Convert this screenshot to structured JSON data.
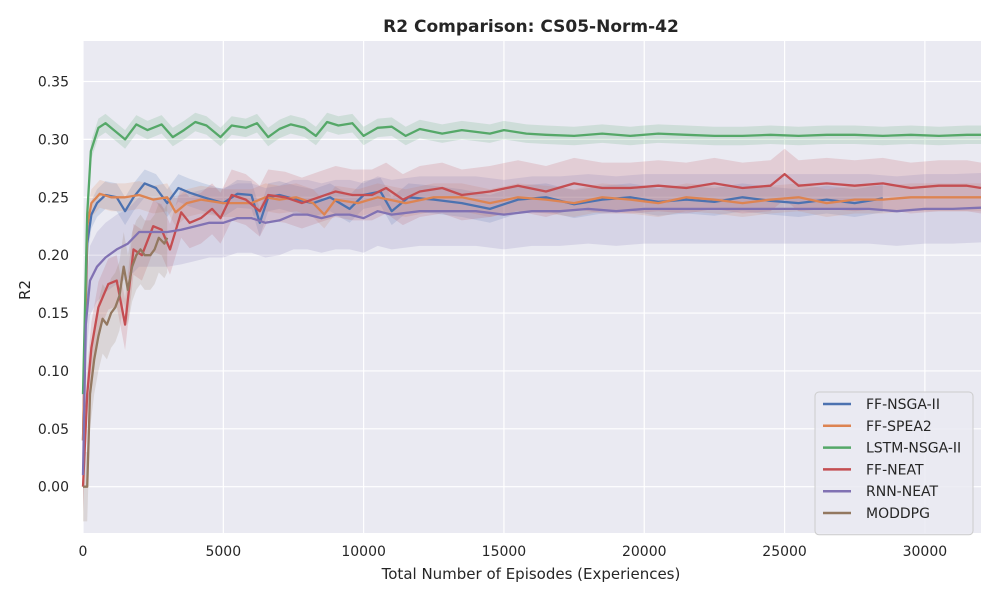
{
  "chart_data": {
    "type": "line",
    "title": "R2 Comparison: CS05-Norm-42",
    "xlabel": "Total Number of Episodes (Experiences)",
    "ylabel": "R2",
    "xlim": [
      0,
      32000
    ],
    "ylim": [
      -0.04,
      0.385
    ],
    "x_ticks": [
      0,
      5000,
      10000,
      15000,
      20000,
      25000,
      30000
    ],
    "y_ticks": [
      0.0,
      0.05,
      0.1,
      0.15,
      0.2,
      0.25,
      0.3,
      0.35
    ],
    "x_tick_labels": [
      "0",
      "5000",
      "10000",
      "15000",
      "20000",
      "25000",
      "30000"
    ],
    "y_tick_labels": [
      "0.00",
      "0.05",
      "0.10",
      "0.15",
      "0.20",
      "0.25",
      "0.30",
      "0.35"
    ],
    "grid": true,
    "background": "#eaeaf2",
    "legend_position": "lower-right",
    "series": [
      {
        "name": "FF-NSGA-II",
        "color": "#4c72b0",
        "band": 0.012,
        "points": [
          [
            0,
            0.04
          ],
          [
            150,
            0.21
          ],
          [
            300,
            0.235
          ],
          [
            500,
            0.245
          ],
          [
            800,
            0.252
          ],
          [
            1200,
            0.25
          ],
          [
            1500,
            0.238
          ],
          [
            1800,
            0.25
          ],
          [
            2200,
            0.262
          ],
          [
            2600,
            0.258
          ],
          [
            3000,
            0.245
          ],
          [
            3400,
            0.258
          ],
          [
            3800,
            0.254
          ],
          [
            4300,
            0.25
          ],
          [
            5000,
            0.245
          ],
          [
            5500,
            0.253
          ],
          [
            6000,
            0.252
          ],
          [
            6300,
            0.228
          ],
          [
            6600,
            0.25
          ],
          [
            7000,
            0.252
          ],
          [
            7600,
            0.248
          ],
          [
            8200,
            0.245
          ],
          [
            8800,
            0.25
          ],
          [
            9500,
            0.24
          ],
          [
            10000,
            0.252
          ],
          [
            10600,
            0.255
          ],
          [
            11000,
            0.238
          ],
          [
            11600,
            0.25
          ],
          [
            12500,
            0.248
          ],
          [
            13500,
            0.245
          ],
          [
            14500,
            0.24
          ],
          [
            15500,
            0.248
          ],
          [
            16500,
            0.25
          ],
          [
            17500,
            0.244
          ],
          [
            18500,
            0.248
          ],
          [
            19500,
            0.25
          ],
          [
            20500,
            0.246
          ],
          [
            21500,
            0.248
          ],
          [
            22500,
            0.246
          ],
          [
            23500,
            0.25
          ],
          [
            24500,
            0.247
          ],
          [
            25500,
            0.245
          ],
          [
            26500,
            0.248
          ],
          [
            27500,
            0.245
          ],
          [
            28500,
            0.249
          ]
        ]
      },
      {
        "name": "FF-SPEA2",
        "color": "#dd8452",
        "band": 0.012,
        "points": [
          [
            0,
            0.04
          ],
          [
            150,
            0.225
          ],
          [
            300,
            0.245
          ],
          [
            600,
            0.253
          ],
          [
            1000,
            0.25
          ],
          [
            1500,
            0.25
          ],
          [
            2000,
            0.252
          ],
          [
            2500,
            0.248
          ],
          [
            3000,
            0.25
          ],
          [
            3300,
            0.237
          ],
          [
            3700,
            0.245
          ],
          [
            4200,
            0.248
          ],
          [
            5000,
            0.245
          ],
          [
            6000,
            0.245
          ],
          [
            6500,
            0.25
          ],
          [
            7000,
            0.248
          ],
          [
            7600,
            0.25
          ],
          [
            8200,
            0.245
          ],
          [
            8600,
            0.235
          ],
          [
            9000,
            0.248
          ],
          [
            9800,
            0.245
          ],
          [
            10500,
            0.25
          ],
          [
            11500,
            0.245
          ],
          [
            12500,
            0.25
          ],
          [
            13500,
            0.25
          ],
          [
            14500,
            0.245
          ],
          [
            15500,
            0.25
          ],
          [
            16500,
            0.248
          ],
          [
            17500,
            0.245
          ],
          [
            18500,
            0.25
          ],
          [
            19500,
            0.248
          ],
          [
            20500,
            0.245
          ],
          [
            21500,
            0.25
          ],
          [
            22500,
            0.248
          ],
          [
            23500,
            0.245
          ],
          [
            24500,
            0.248
          ],
          [
            25500,
            0.25
          ],
          [
            26500,
            0.245
          ],
          [
            27500,
            0.248
          ],
          [
            28500,
            0.248
          ],
          [
            29500,
            0.25
          ],
          [
            30500,
            0.25
          ],
          [
            31500,
            0.25
          ],
          [
            32000,
            0.25
          ]
        ]
      },
      {
        "name": "LSTM-NSGA-II",
        "color": "#55a868",
        "band": 0.008,
        "points": [
          [
            0,
            0.08
          ],
          [
            150,
            0.235
          ],
          [
            280,
            0.29
          ],
          [
            550,
            0.31
          ],
          [
            800,
            0.314
          ],
          [
            1100,
            0.308
          ],
          [
            1500,
            0.3
          ],
          [
            1900,
            0.313
          ],
          [
            2300,
            0.308
          ],
          [
            2800,
            0.313
          ],
          [
            3200,
            0.302
          ],
          [
            3600,
            0.308
          ],
          [
            4000,
            0.315
          ],
          [
            4400,
            0.312
          ],
          [
            4900,
            0.302
          ],
          [
            5300,
            0.312
          ],
          [
            5800,
            0.31
          ],
          [
            6200,
            0.314
          ],
          [
            6600,
            0.302
          ],
          [
            7000,
            0.309
          ],
          [
            7400,
            0.313
          ],
          [
            7900,
            0.31
          ],
          [
            8300,
            0.303
          ],
          [
            8700,
            0.315
          ],
          [
            9100,
            0.312
          ],
          [
            9600,
            0.314
          ],
          [
            10000,
            0.303
          ],
          [
            10500,
            0.31
          ],
          [
            11000,
            0.311
          ],
          [
            11500,
            0.303
          ],
          [
            12000,
            0.309
          ],
          [
            12800,
            0.305
          ],
          [
            13500,
            0.308
          ],
          [
            14500,
            0.305
          ],
          [
            15000,
            0.308
          ],
          [
            15800,
            0.305
          ],
          [
            16500,
            0.304
          ],
          [
            17500,
            0.303
          ],
          [
            18500,
            0.305
          ],
          [
            19500,
            0.303
          ],
          [
            20500,
            0.305
          ],
          [
            21500,
            0.304
          ],
          [
            22500,
            0.303
          ],
          [
            23500,
            0.303
          ],
          [
            24500,
            0.304
          ],
          [
            25500,
            0.303
          ],
          [
            26500,
            0.304
          ],
          [
            27500,
            0.304
          ],
          [
            28500,
            0.303
          ],
          [
            29500,
            0.304
          ],
          [
            30500,
            0.303
          ],
          [
            31500,
            0.304
          ],
          [
            32000,
            0.304
          ]
        ]
      },
      {
        "name": "FF-NEAT",
        "color": "#c44e52",
        "band": 0.022,
        "points": [
          [
            0,
            0.0
          ],
          [
            150,
            0.08
          ],
          [
            300,
            0.12
          ],
          [
            550,
            0.155
          ],
          [
            900,
            0.175
          ],
          [
            1200,
            0.178
          ],
          [
            1500,
            0.14
          ],
          [
            1800,
            0.205
          ],
          [
            2100,
            0.2
          ],
          [
            2500,
            0.225
          ],
          [
            2800,
            0.222
          ],
          [
            3100,
            0.205
          ],
          [
            3500,
            0.237
          ],
          [
            3800,
            0.228
          ],
          [
            4200,
            0.232
          ],
          [
            4600,
            0.24
          ],
          [
            4900,
            0.232
          ],
          [
            5300,
            0.252
          ],
          [
            5800,
            0.248
          ],
          [
            6300,
            0.238
          ],
          [
            6600,
            0.252
          ],
          [
            7200,
            0.25
          ],
          [
            7800,
            0.245
          ],
          [
            8400,
            0.25
          ],
          [
            9000,
            0.255
          ],
          [
            9600,
            0.252
          ],
          [
            10300,
            0.252
          ],
          [
            10800,
            0.258
          ],
          [
            11400,
            0.248
          ],
          [
            12000,
            0.255
          ],
          [
            12800,
            0.258
          ],
          [
            13500,
            0.252
          ],
          [
            14500,
            0.255
          ],
          [
            15500,
            0.26
          ],
          [
            16500,
            0.255
          ],
          [
            17500,
            0.262
          ],
          [
            18500,
            0.258
          ],
          [
            19500,
            0.258
          ],
          [
            20500,
            0.26
          ],
          [
            21500,
            0.258
          ],
          [
            22500,
            0.262
          ],
          [
            23500,
            0.258
          ],
          [
            24500,
            0.26
          ],
          [
            25000,
            0.27
          ],
          [
            25500,
            0.26
          ],
          [
            26500,
            0.262
          ],
          [
            27500,
            0.26
          ],
          [
            28500,
            0.262
          ],
          [
            29500,
            0.258
          ],
          [
            30500,
            0.26
          ],
          [
            31500,
            0.26
          ],
          [
            32000,
            0.258
          ]
        ]
      },
      {
        "name": "RNN-NEAT",
        "color": "#8172b3",
        "band": 0.03,
        "points": [
          [
            0,
            0.01
          ],
          [
            100,
            0.14
          ],
          [
            250,
            0.178
          ],
          [
            500,
            0.19
          ],
          [
            800,
            0.198
          ],
          [
            1200,
            0.205
          ],
          [
            1600,
            0.21
          ],
          [
            2000,
            0.22
          ],
          [
            2500,
            0.22
          ],
          [
            3000,
            0.22
          ],
          [
            3500,
            0.222
          ],
          [
            4000,
            0.225
          ],
          [
            4500,
            0.228
          ],
          [
            5000,
            0.228
          ],
          [
            5500,
            0.232
          ],
          [
            6000,
            0.232
          ],
          [
            6500,
            0.228
          ],
          [
            7000,
            0.23
          ],
          [
            7500,
            0.235
          ],
          [
            8000,
            0.235
          ],
          [
            8500,
            0.232
          ],
          [
            9000,
            0.235
          ],
          [
            9500,
            0.235
          ],
          [
            10000,
            0.232
          ],
          [
            10500,
            0.238
          ],
          [
            11000,
            0.235
          ],
          [
            12000,
            0.238
          ],
          [
            13000,
            0.238
          ],
          [
            14000,
            0.238
          ],
          [
            15000,
            0.235
          ],
          [
            16000,
            0.238
          ],
          [
            17000,
            0.238
          ],
          [
            18000,
            0.24
          ],
          [
            19000,
            0.238
          ],
          [
            20000,
            0.24
          ],
          [
            21000,
            0.24
          ],
          [
            22000,
            0.24
          ],
          [
            23000,
            0.24
          ],
          [
            24000,
            0.24
          ],
          [
            25000,
            0.24
          ],
          [
            26000,
            0.24
          ],
          [
            27000,
            0.24
          ],
          [
            28000,
            0.24
          ],
          [
            29000,
            0.238
          ],
          [
            30000,
            0.24
          ],
          [
            31000,
            0.24
          ],
          [
            32000,
            0.241
          ]
        ]
      },
      {
        "name": "MODDPG",
        "color": "#937860",
        "band": 0.03,
        "points": [
          [
            0,
            0.0
          ],
          [
            150,
            0.0
          ],
          [
            250,
            0.08
          ],
          [
            400,
            0.11
          ],
          [
            550,
            0.13
          ],
          [
            700,
            0.145
          ],
          [
            850,
            0.14
          ],
          [
            1000,
            0.15
          ],
          [
            1150,
            0.155
          ],
          [
            1300,
            0.165
          ],
          [
            1450,
            0.19
          ],
          [
            1600,
            0.17
          ],
          [
            1750,
            0.19
          ],
          [
            1900,
            0.2
          ],
          [
            2050,
            0.205
          ],
          [
            2200,
            0.2
          ],
          [
            2400,
            0.2
          ],
          [
            2550,
            0.205
          ],
          [
            2700,
            0.215
          ],
          [
            2900,
            0.21
          ],
          [
            3000,
            0.215
          ]
        ]
      }
    ]
  }
}
